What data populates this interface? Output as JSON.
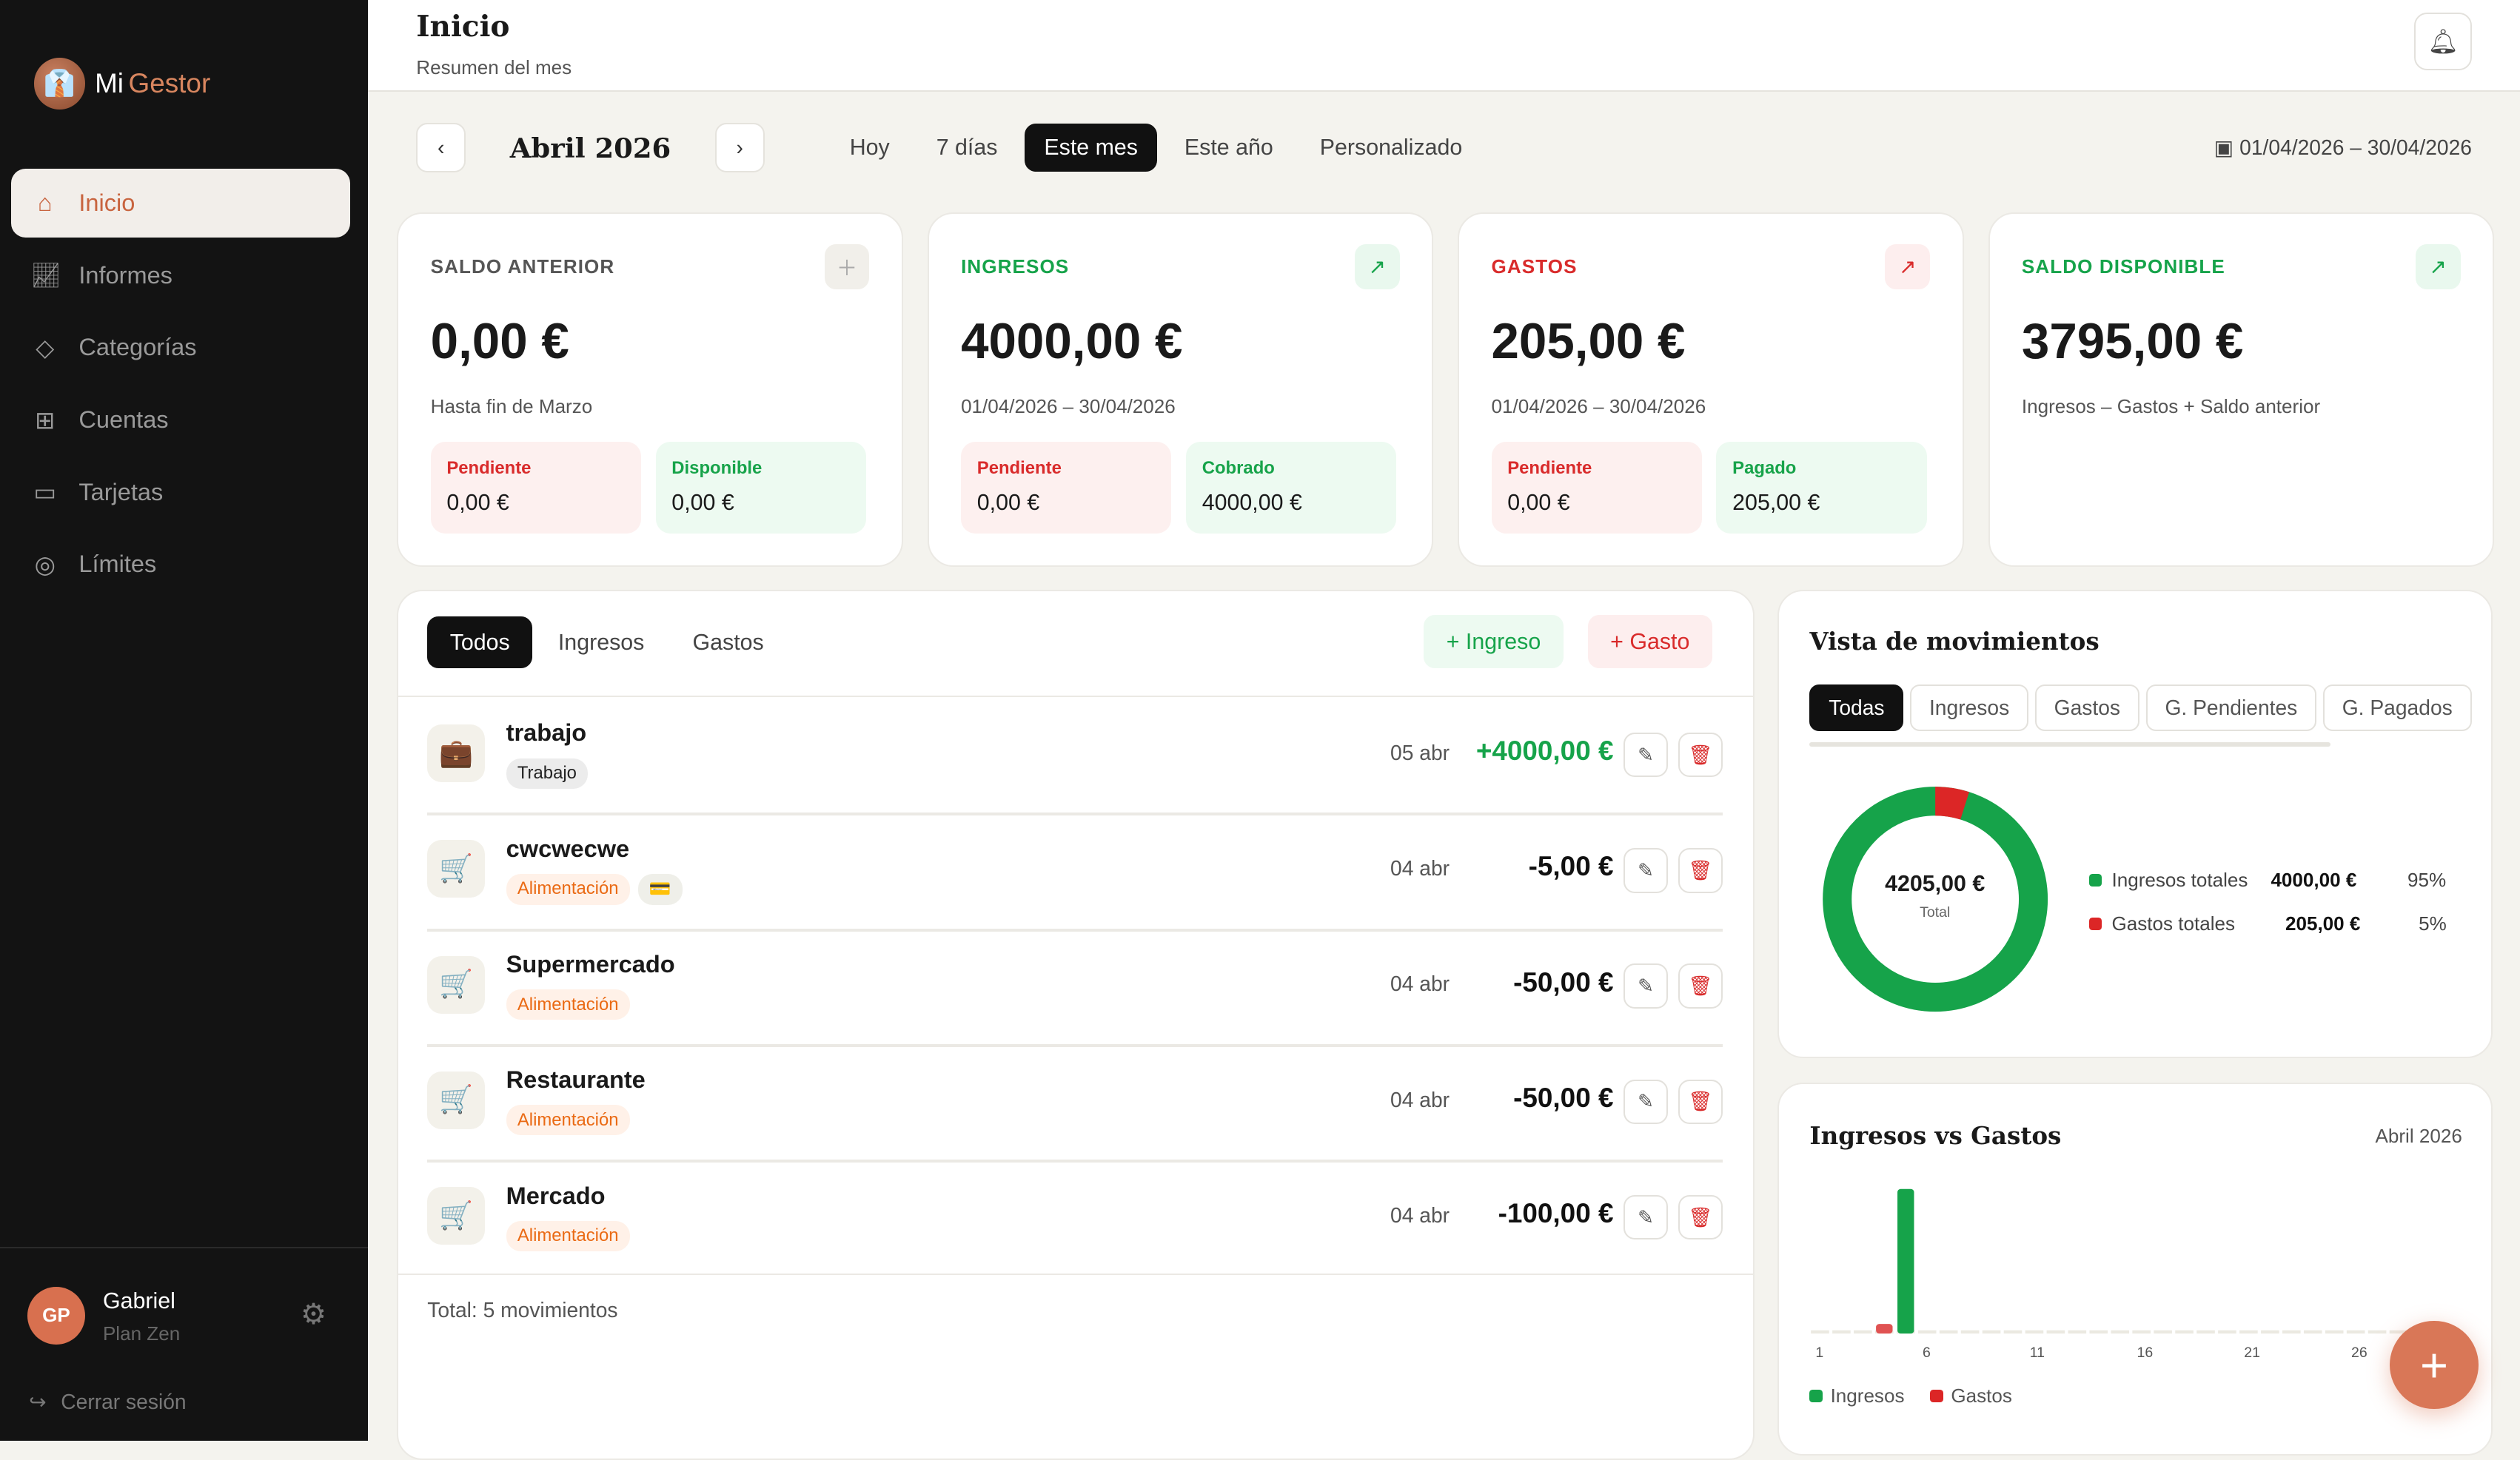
{
  "app": {
    "brand_mi": "Mi",
    "brand_gestor": "Gestor"
  },
  "sidebar": {
    "items": [
      {
        "label": "Inicio",
        "icon": "home-icon"
      },
      {
        "label": "Informes",
        "icon": "chart-icon"
      },
      {
        "label": "Categorías",
        "icon": "tag-icon"
      },
      {
        "label": "Cuentas",
        "icon": "wallet-icon"
      },
      {
        "label": "Tarjetas",
        "icon": "card-icon"
      },
      {
        "label": "Límites",
        "icon": "target-icon"
      }
    ],
    "user": {
      "initials": "GP",
      "name": "Gabriel",
      "plan": "Plan Zen"
    },
    "logout": "Cerrar sesión"
  },
  "header": {
    "title": "Inicio",
    "subtitle": "Resumen del mes"
  },
  "period": {
    "month": "Abril 2026",
    "tabs": [
      "Hoy",
      "7 días",
      "Este mes",
      "Este año",
      "Personalizado"
    ],
    "active": "Este mes",
    "range": "01/04/2026 – 30/04/2026"
  },
  "stats": [
    {
      "label": "SALDO ANTERIOR",
      "value": "0,00 €",
      "note": "Hasta fin de Marzo",
      "a_label": "Pendiente",
      "a_value": "0,00 €",
      "b_label": "Disponible",
      "b_value": "0,00 €"
    },
    {
      "label": "INGRESOS",
      "value": "4000,00 €",
      "note": "01/04/2026 – 30/04/2026",
      "a_label": "Pendiente",
      "a_value": "0,00 €",
      "b_label": "Cobrado",
      "b_value": "4000,00 €"
    },
    {
      "label": "GASTOS",
      "value": "205,00 €",
      "note": "01/04/2026 – 30/04/2026",
      "a_label": "Pendiente",
      "a_value": "0,00 €",
      "b_label": "Pagado",
      "b_value": "205,00 €"
    },
    {
      "label": "SALDO DISPONIBLE",
      "value": "3795,00 €",
      "note": "Ingresos – Gastos + Saldo anterior"
    }
  ],
  "movements": {
    "tabs": [
      "Todos",
      "Ingresos",
      "Gastos"
    ],
    "add_income": "+ Ingreso",
    "add_expense": "+ Gasto",
    "rows": [
      {
        "name": "trabajo",
        "tag": "Trabajo",
        "date": "05 abr",
        "amount": "+4000,00 €",
        "icon": "briefcase-icon"
      },
      {
        "name": "cwcwecwe",
        "tag": "Alimentación",
        "date": "04 abr",
        "amount": "-5,00 €",
        "icon": "cart-icon",
        "card": true
      },
      {
        "name": "Supermercado",
        "tag": "Alimentación",
        "date": "04 abr",
        "amount": "-50,00 €",
        "icon": "cart-icon"
      },
      {
        "name": "Restaurante",
        "tag": "Alimentación",
        "date": "04 abr",
        "amount": "-50,00 €",
        "icon": "cart-icon"
      },
      {
        "name": "Mercado",
        "tag": "Alimentación",
        "date": "04 abr",
        "amount": "-100,00 €",
        "icon": "cart-icon"
      }
    ],
    "total": "Total: 5 movimientos"
  },
  "vista": {
    "title": "Vista de movimientos",
    "tabs": [
      "Todas",
      "Ingresos",
      "Gastos",
      "G. Pendientes",
      "G. Pagados"
    ],
    "center_value": "4205,00 €",
    "center_label": "Total",
    "legend": [
      {
        "label": "Ingresos totales",
        "value": "4000,00 €",
        "pct": "95%",
        "color": "#16a34a"
      },
      {
        "label": "Gastos totales",
        "value": "205,00 €",
        "pct": "5%",
        "color": "#dc2626"
      }
    ]
  },
  "chart_data": {
    "type": "bar",
    "title": "Ingresos vs Gastos",
    "subtitle": "Abril 2026",
    "x_tick_labels": [
      "1",
      "6",
      "11",
      "16",
      "21",
      "26"
    ],
    "x_range": [
      1,
      30
    ],
    "series": [
      {
        "name": "Ingresos",
        "color": "#16a34a",
        "points": [
          {
            "x": 5,
            "y": 4000
          }
        ]
      },
      {
        "name": "Gastos",
        "color": "#e05252",
        "points": [
          {
            "x": 4,
            "y": 205
          }
        ]
      }
    ]
  }
}
